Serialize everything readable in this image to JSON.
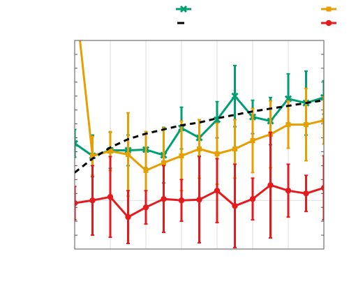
{
  "chart_data": {
    "type": "line",
    "title": "",
    "xlabel": "",
    "ylabel": "",
    "xlim": [
      0,
      14
    ],
    "ylim": [
      -0.35,
      1.15
    ],
    "x": [
      0,
      1,
      2,
      3,
      4,
      5,
      6,
      7,
      8,
      9,
      10,
      11,
      12,
      13,
      14
    ],
    "grid": true,
    "legend_position": "top",
    "series": [
      {
        "marker": "x",
        "color": "#009e73",
        "values": [
          0.41,
          0.32,
          0.36,
          0.36,
          0.365,
          0.325,
          0.52,
          0.45,
          0.58,
          0.75,
          0.6,
          0.57,
          0.73,
          0.7,
          0.74
        ],
        "errors": [
          0.1,
          0.15,
          0.13,
          0.11,
          0.13,
          0.2,
          0.15,
          0.13,
          0.13,
          0.22,
          0.12,
          0.17,
          0.18,
          0.23,
          0.12
        ]
      },
      {
        "marker": "square",
        "color": "#e69f00",
        "values": [
          1.5,
          0.32,
          0.355,
          0.33,
          0.215,
          0.27,
          0.32,
          0.37,
          0.335,
          0.37,
          0.43,
          0.475,
          0.545,
          0.545,
          0.575
        ],
        "errors": [
          0.0,
          0.14,
          0.14,
          0.3,
          0.28,
          0.25,
          0.25,
          0.21,
          0.22,
          0.21,
          0.23,
          0.24,
          0.17,
          0.26,
          0.17
        ]
      },
      {
        "marker": "none",
        "style": "dashed",
        "color": "#000000",
        "values": [
          0.2,
          0.3,
          0.38,
          0.44,
          0.48,
          0.51,
          0.54,
          0.56,
          0.59,
          0.615,
          0.64,
          0.66,
          0.68,
          0.7,
          0.72
        ],
        "errors": []
      },
      {
        "marker": "circle",
        "color": "#e41a1c",
        "values": [
          -0.02,
          0.0,
          0.025,
          -0.12,
          -0.05,
          0.01,
          0.0,
          0.005,
          0.07,
          -0.04,
          0.01,
          0.11,
          0.07,
          0.05,
          0.09
        ],
        "errors": [
          0.12,
          0.25,
          0.29,
          0.19,
          0.12,
          0.24,
          0.15,
          0.31,
          0.23,
          0.3,
          0.15,
          0.38,
          0.19,
          0.13,
          0.23
        ]
      }
    ]
  }
}
